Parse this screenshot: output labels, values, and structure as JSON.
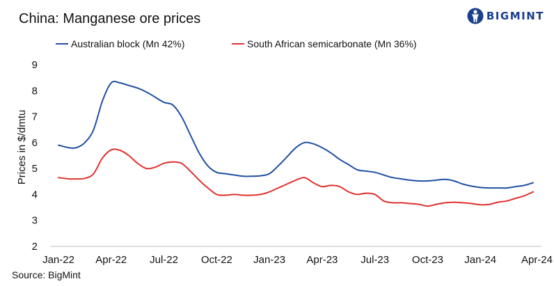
{
  "header": {
    "title": "China: Manganese ore prices",
    "brand": "BIGMINT",
    "brand_icon": "person-icon"
  },
  "footer": {
    "source": "Source:  BigMint"
  },
  "colors": {
    "australian": "#1f4fa3",
    "south_african": "#e0302d",
    "axis": "#bfbfbf",
    "brand": "#1a3f8f"
  },
  "chart_data": {
    "type": "line",
    "title": "China: Manganese ore prices",
    "xlabel": "",
    "ylabel": "Prices in $/dmtu",
    "ylim": [
      2,
      9
    ],
    "yticks": [
      2,
      3,
      4,
      5,
      6,
      7,
      8,
      9
    ],
    "xlim": [
      0,
      27
    ],
    "xtick_positions": [
      0,
      3,
      6,
      9,
      12,
      15,
      18,
      21,
      24,
      27
    ],
    "xtick_labels": [
      "Jan-22",
      "Apr-22",
      "Jul-22",
      "Oct-22",
      "Jan-23",
      "Apr-23",
      "Jul-23",
      "Oct-23",
      "Jan-24",
      "Apr-24"
    ],
    "legend_position": "top-left",
    "grid": false,
    "series": [
      {
        "name": "Australian block (Mn 42%)",
        "color_key": "australian",
        "x": [
          0,
          0.6,
          1,
          1.5,
          2,
          2.5,
          3,
          3.5,
          4,
          4.5,
          5,
          5.5,
          6,
          6.5,
          7,
          7.5,
          8,
          8.5,
          9,
          9.5,
          10,
          10.5,
          11,
          11.5,
          12,
          12.5,
          13,
          13.5,
          14,
          14.5,
          15,
          15.5,
          16,
          16.5,
          17,
          17.5,
          18,
          18.5,
          19,
          19.5,
          20,
          20.5,
          21,
          21.5,
          22,
          22.5,
          23,
          23.5,
          24,
          24.5,
          25,
          25.5,
          26,
          26.5,
          27
        ],
        "y": [
          5.9,
          5.8,
          5.8,
          6.0,
          6.5,
          7.6,
          8.3,
          8.3,
          8.2,
          8.1,
          7.95,
          7.75,
          7.55,
          7.45,
          7.0,
          6.3,
          5.6,
          5.1,
          4.85,
          4.8,
          4.75,
          4.7,
          4.7,
          4.72,
          4.8,
          5.1,
          5.45,
          5.8,
          6.0,
          5.95,
          5.8,
          5.6,
          5.35,
          5.15,
          4.95,
          4.9,
          4.85,
          4.75,
          4.65,
          4.6,
          4.55,
          4.52,
          4.52,
          4.55,
          4.58,
          4.52,
          4.4,
          4.32,
          4.27,
          4.25,
          4.25,
          4.25,
          4.3,
          4.35,
          4.45
        ]
      },
      {
        "name": "South African semicarbonate (Mn 36%)",
        "color_key": "south_african",
        "x": [
          0,
          0.6,
          1,
          1.5,
          2,
          2.5,
          3,
          3.5,
          4,
          4.5,
          5,
          5.5,
          6,
          6.5,
          7,
          7.5,
          8,
          8.5,
          9,
          9.5,
          10,
          10.5,
          11,
          11.5,
          12,
          12.5,
          13,
          13.5,
          14,
          14.5,
          15,
          15.5,
          16,
          16.5,
          17,
          17.5,
          18,
          18.5,
          19,
          19.5,
          20,
          20.5,
          21,
          21.5,
          22,
          22.5,
          23,
          23.5,
          24,
          24.5,
          25,
          25.5,
          26,
          26.5,
          27
        ],
        "y": [
          4.65,
          4.6,
          4.6,
          4.62,
          4.8,
          5.4,
          5.72,
          5.7,
          5.5,
          5.2,
          5.0,
          5.05,
          5.2,
          5.25,
          5.2,
          4.9,
          4.55,
          4.25,
          4.0,
          3.97,
          4.0,
          3.97,
          3.97,
          4.0,
          4.1,
          4.25,
          4.4,
          4.55,
          4.65,
          4.45,
          4.3,
          4.35,
          4.3,
          4.1,
          4.0,
          4.05,
          4.0,
          3.75,
          3.68,
          3.68,
          3.65,
          3.62,
          3.55,
          3.62,
          3.68,
          3.7,
          3.68,
          3.65,
          3.6,
          3.62,
          3.7,
          3.75,
          3.85,
          3.95,
          4.1
        ]
      }
    ]
  }
}
